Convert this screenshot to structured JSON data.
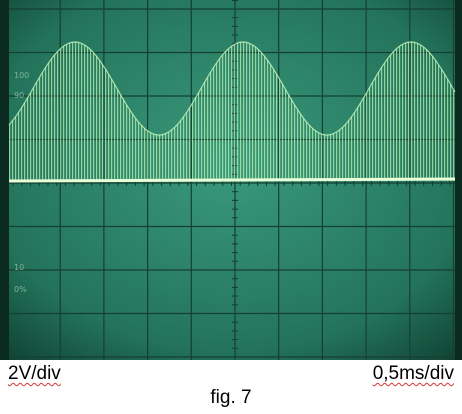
{
  "screen": {
    "labels": [
      "100",
      "90",
      "10",
      "0%"
    ]
  },
  "captions": {
    "vertical_scale": "2V/div",
    "time_scale": "0,5ms/div",
    "figure": "fig. 7"
  }
}
